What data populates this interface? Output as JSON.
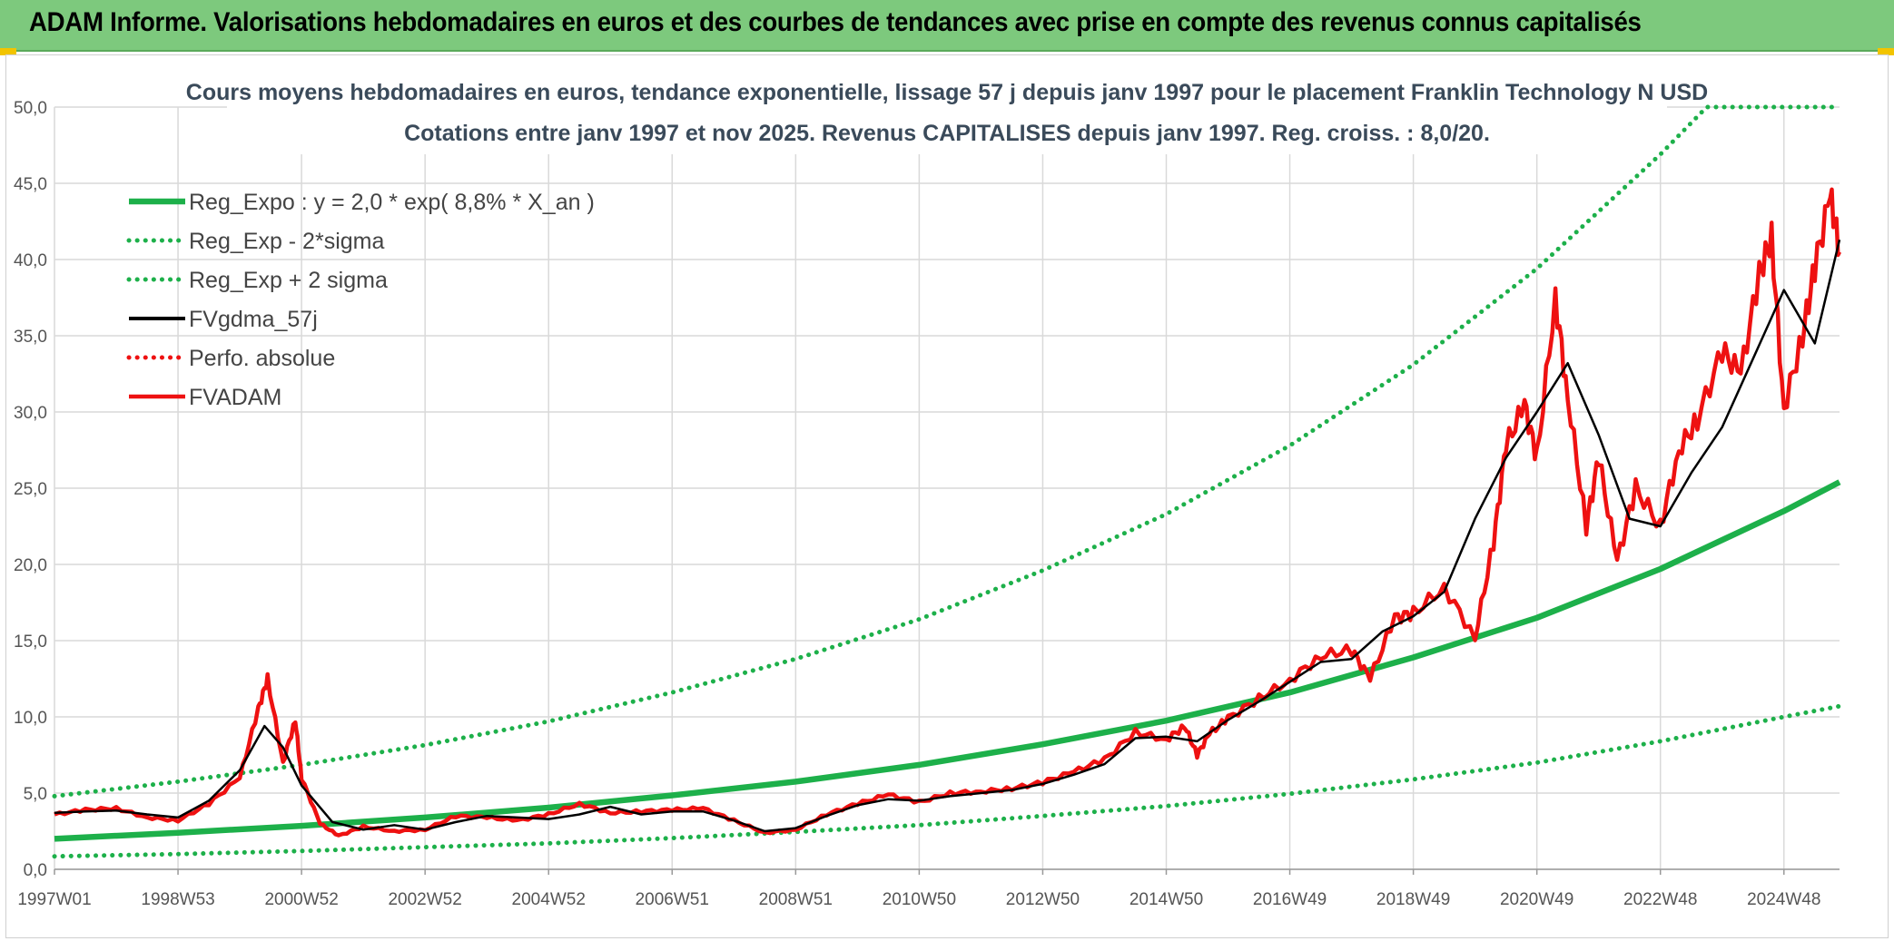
{
  "header": {
    "title": "ADAM Informe. Valorisations hebdomadaires en euros et des courbes de tendances avec prise en compte des revenus connus capitalisés"
  },
  "colors": {
    "header_bg": "#7dc97d",
    "green": "#1db04a",
    "red": "#ee1111",
    "black": "#000000",
    "grid": "#d9d9d9"
  },
  "chart_data": {
    "type": "line",
    "title": "Cours moyens hebdomadaires en euros, tendance exponentielle, lissage 57 j depuis janv 1997 pour le placement Franklin Technology N USD",
    "subtitle": "Cotations entre janv 1997 et nov 2025. Revenus CAPITALISES depuis janv 1997. Reg. croiss. : 8,0/20.",
    "xlabel": "",
    "ylabel": "",
    "xlim": [
      1997.0,
      2025.9
    ],
    "ylim": [
      0,
      50
    ],
    "grid": true,
    "legend_position": "top-left",
    "y_ticks": [
      "0,0",
      "5,0",
      "10,0",
      "15,0",
      "20,0",
      "25,0",
      "30,0",
      "35,0",
      "40,0",
      "45,0",
      "50,0"
    ],
    "x_ticks": [
      {
        "label": "1997W01",
        "x": 1997.0
      },
      {
        "label": "1998W53",
        "x": 1999.0
      },
      {
        "label": "2000W52",
        "x": 2001.0
      },
      {
        "label": "2002W52",
        "x": 2003.0
      },
      {
        "label": "2004W52",
        "x": 2005.0
      },
      {
        "label": "2006W51",
        "x": 2007.0
      },
      {
        "label": "2008W51",
        "x": 2009.0
      },
      {
        "label": "2010W50",
        "x": 2011.0
      },
      {
        "label": "2012W50",
        "x": 2013.0
      },
      {
        "label": "2014W50",
        "x": 2015.0
      },
      {
        "label": "2016W49",
        "x": 2017.0
      },
      {
        "label": "2018W49",
        "x": 2019.0
      },
      {
        "label": "2020W49",
        "x": 2021.0
      },
      {
        "label": "2022W48",
        "x": 2023.0
      },
      {
        "label": "2024W48",
        "x": 2025.0
      }
    ],
    "series": [
      {
        "name": "Reg_Expo : y = 2,0 * exp( 8,8% *  X_an )",
        "style": "solid-thick",
        "color": "#1db04a",
        "x": [
          1997,
          1999,
          2001,
          2003,
          2005,
          2007,
          2009,
          2011,
          2013,
          2015,
          2017,
          2019,
          2021,
          2023,
          2025,
          2025.9
        ],
        "y": [
          2.0,
          2.4,
          2.85,
          3.4,
          4.05,
          4.85,
          5.75,
          6.85,
          8.2,
          9.75,
          11.6,
          13.9,
          16.5,
          19.7,
          23.5,
          25.4
        ]
      },
      {
        "name": "Reg_Exp - 2*sigma",
        "style": "dotted",
        "color": "#1db04a",
        "x": [
          1997,
          1999,
          2001,
          2003,
          2005,
          2007,
          2009,
          2011,
          2013,
          2015,
          2017,
          2019,
          2021,
          2023,
          2025,
          2025.9
        ],
        "y": [
          0.85,
          1.0,
          1.2,
          1.45,
          1.7,
          2.05,
          2.45,
          2.9,
          3.5,
          4.15,
          4.95,
          5.9,
          7.0,
          8.4,
          10.0,
          10.7
        ]
      },
      {
        "name": "Reg_Exp + 2 sigma",
        "style": "dotted",
        "color": "#1db04a",
        "x": [
          1997,
          1999,
          2001,
          2003,
          2005,
          2007,
          2009,
          2011,
          2013,
          2015,
          2017,
          2019,
          2021,
          2023,
          2023.75,
          2025.9
        ],
        "y": [
          4.8,
          5.75,
          6.85,
          8.15,
          9.7,
          11.6,
          13.8,
          16.4,
          19.6,
          23.3,
          27.8,
          33.1,
          39.4,
          46.9,
          50.0,
          50.0
        ]
      },
      {
        "name": "FVgdma_57j",
        "style": "solid",
        "color": "#000000",
        "x": [
          1997,
          1997.5,
          1998,
          1998.5,
          1999,
          1999.5,
          2000,
          2000.4,
          2000.7,
          2001,
          2001.5,
          2002,
          2002.5,
          2003,
          2003.5,
          2004,
          2004.5,
          2005,
          2005.5,
          2006,
          2006.5,
          2007,
          2007.5,
          2008,
          2008.5,
          2009,
          2009.5,
          2010,
          2010.5,
          2011,
          2011.5,
          2012,
          2012.5,
          2013,
          2013.5,
          2014,
          2014.5,
          2015,
          2015.5,
          2016,
          2016.5,
          2017,
          2017.5,
          2018,
          2018.5,
          2019,
          2019.5,
          2020,
          2020.5,
          2021,
          2021.5,
          2022,
          2022.5,
          2023,
          2023.5,
          2024,
          2024.5,
          2025,
          2025.5,
          2025.9
        ],
        "y": [
          3.7,
          3.8,
          3.85,
          3.6,
          3.4,
          4.5,
          6.5,
          9.4,
          8.0,
          5.5,
          3.1,
          2.6,
          2.9,
          2.6,
          3.1,
          3.5,
          3.4,
          3.3,
          3.6,
          4.1,
          3.6,
          3.8,
          3.8,
          3.2,
          2.5,
          2.7,
          3.5,
          4.2,
          4.6,
          4.5,
          4.8,
          5.0,
          5.2,
          5.6,
          6.2,
          6.9,
          8.6,
          8.7,
          8.4,
          9.8,
          11.0,
          12.3,
          13.6,
          13.8,
          15.6,
          16.6,
          18.2,
          23.0,
          27.0,
          30.0,
          33.2,
          28.5,
          23.0,
          22.5,
          26.0,
          29.0,
          33.5,
          38.0,
          34.5,
          41.3
        ]
      },
      {
        "name": "Perfo. absolue",
        "style": "dotted",
        "color": "#ee1111",
        "x": [],
        "y": []
      },
      {
        "name": "FVADAM",
        "style": "solid-thick",
        "color": "#ee1111",
        "x": [
          1997,
          1997.5,
          1998,
          1998.5,
          1999,
          1999.5,
          2000,
          2000.3,
          2000.45,
          2000.7,
          2000.9,
          2001,
          2001.3,
          2001.6,
          2002,
          2002.5,
          2003,
          2003.5,
          2004,
          2004.5,
          2005,
          2005.5,
          2006,
          2006.5,
          2007,
          2007.5,
          2008,
          2008.5,
          2009,
          2009.5,
          2010,
          2010.5,
          2011,
          2011.5,
          2012,
          2012.5,
          2013,
          2013.5,
          2014,
          2014.5,
          2015,
          2015.3,
          2015.5,
          2015.7,
          2016,
          2016.5,
          2017,
          2017.5,
          2018,
          2018.3,
          2018.7,
          2019,
          2019.5,
          2020,
          2020.3,
          2020.5,
          2020.8,
          2021,
          2021.3,
          2021.5,
          2021.8,
          2022,
          2022.3,
          2022.6,
          2023,
          2023.3,
          2023.6,
          2024,
          2024.3,
          2024.6,
          2024.8,
          2025,
          2025.3,
          2025.5,
          2025.75,
          2025.9
        ],
        "y": [
          3.6,
          3.9,
          4.0,
          3.4,
          3.2,
          4.3,
          6.0,
          10.5,
          12.5,
          7.0,
          9.8,
          6.0,
          3.0,
          2.2,
          2.8,
          2.5,
          2.6,
          3.5,
          3.4,
          3.2,
          3.6,
          4.3,
          3.7,
          3.8,
          3.9,
          4.0,
          3.2,
          2.4,
          2.6,
          3.6,
          4.3,
          4.9,
          4.4,
          5.0,
          5.1,
          5.3,
          5.7,
          6.4,
          7.2,
          9.0,
          8.5,
          9.4,
          7.5,
          8.9,
          9.9,
          11.2,
          12.4,
          14.0,
          14.4,
          12.5,
          16.5,
          16.8,
          18.5,
          15.2,
          21.5,
          27.8,
          30.5,
          27.0,
          37.5,
          31.0,
          22.5,
          27.0,
          20.2,
          25.0,
          22.5,
          27.5,
          29.5,
          34.0,
          32.5,
          39.0,
          41.5,
          30.2,
          35.0,
          39.5,
          44.2,
          40.5
        ]
      }
    ]
  }
}
